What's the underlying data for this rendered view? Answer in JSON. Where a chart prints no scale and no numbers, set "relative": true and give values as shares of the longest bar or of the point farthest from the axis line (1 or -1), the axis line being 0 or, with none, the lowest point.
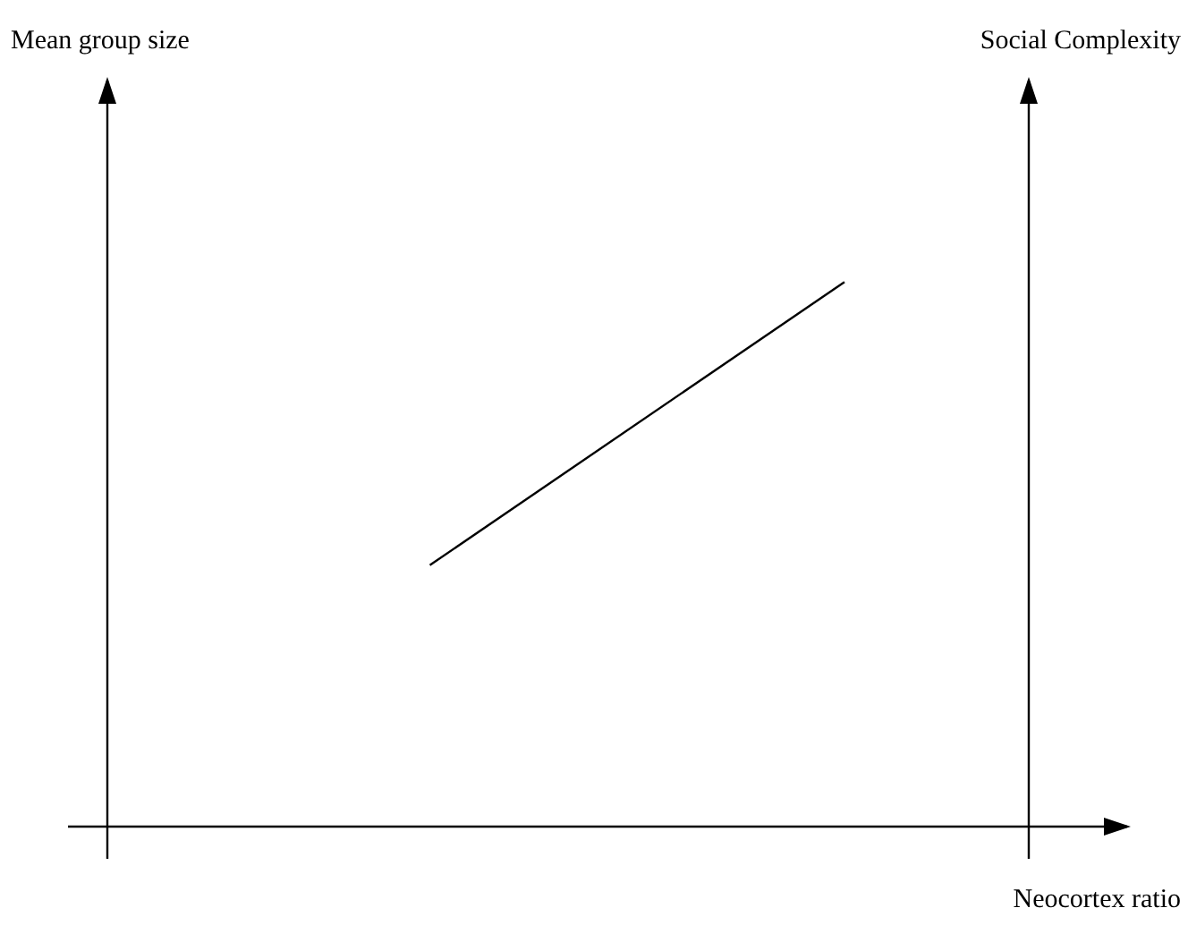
{
  "chart_data": {
    "type": "line",
    "relative": true,
    "xlabel": "Neocortex ratio",
    "annotations": [
      "Mean group size",
      "Social Complexity"
    ],
    "categories": [
      null,
      null,
      null,
      null,
      null,
      null,
      null,
      null,
      null,
      null,
      null,
      null,
      null,
      null,
      null,
      null,
      null,
      null,
      null,
      null,
      null
    ],
    "series": [
      {
        "color": "#000000",
        "values": [
          null,
          null,
          null,
          null,
          null,
          null,
          null,
          0.48,
          null,
          null,
          null,
          null,
          null,
          null,
          null,
          null,
          1,
          null,
          null,
          null,
          null
        ]
      }
    ]
  }
}
